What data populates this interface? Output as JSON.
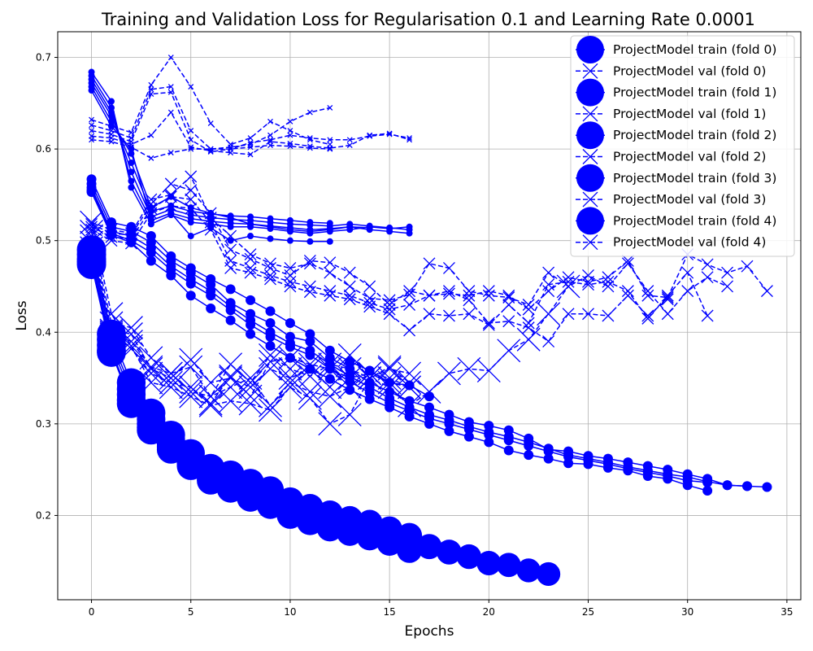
{
  "chart_data": {
    "type": "line",
    "title": "Training and Validation Loss for Regularisation 0.1 and Learning Rate 0.0001",
    "xlabel": "Epochs",
    "ylabel": "Loss",
    "xlim": [
      -1.7,
      35.7
    ],
    "ylim": [
      0.108,
      0.728
    ],
    "xticks": [
      0,
      5,
      10,
      15,
      20,
      25,
      30,
      35
    ],
    "yticks": [
      0.2,
      0.3,
      0.4,
      0.5,
      0.6,
      0.7
    ],
    "grid": true,
    "legend_position": "top-right",
    "line_color": "#0000ff",
    "legend": [
      "ProjectModel train (fold 0)",
      "ProjectModel val (fold 0)",
      "ProjectModel train (fold 1)",
      "ProjectModel val (fold 1)",
      "ProjectModel train (fold 2)",
      "ProjectModel val (fold 2)",
      "ProjectModel train (fold 3)",
      "ProjectModel val (fold 3)",
      "ProjectModel train (fold 4)",
      "ProjectModel val (fold 4)"
    ],
    "series": [
      {
        "kind": "train",
        "group": "a",
        "values": [
          0.684,
          0.652,
          0.558,
          0.518,
          0.528,
          0.52,
          0.518,
          0.515,
          0.515,
          0.513,
          0.51,
          0.508,
          0.51,
          0.512,
          0.515,
          0.513,
          0.515
        ]
      },
      {
        "kind": "train",
        "group": "a",
        "values": [
          0.68,
          0.645,
          0.565,
          0.522,
          0.53,
          0.524,
          0.521,
          0.519,
          0.518,
          0.516,
          0.514,
          0.512,
          0.513,
          0.515,
          0.512,
          0.51,
          0.508
        ]
      },
      {
        "kind": "train",
        "group": "a",
        "values": [
          0.676,
          0.64,
          0.575,
          0.526,
          0.534,
          0.528,
          0.525,
          0.523,
          0.522,
          0.52,
          0.518,
          0.517,
          0.516,
          0.518,
          0.516,
          0.514,
          0.512
        ]
      },
      {
        "kind": "train",
        "group": "a",
        "values": [
          0.672,
          0.636,
          0.585,
          0.532,
          0.538,
          0.532,
          0.529,
          0.527,
          0.526,
          0.524,
          0.522,
          0.52,
          0.519
        ]
      },
      {
        "kind": "train",
        "group": "a",
        "values": [
          0.668,
          0.63,
          0.595,
          0.536,
          0.548,
          0.536,
          0.53,
          0.525,
          0.518,
          0.515,
          0.512,
          0.51,
          0.512,
          0.515,
          0.514
        ]
      },
      {
        "kind": "train",
        "group": "a",
        "values": [
          0.664,
          0.625,
          0.6,
          0.522,
          0.53,
          0.505,
          0.514,
          0.5,
          0.505,
          0.502,
          0.5,
          0.499,
          0.499
        ]
      },
      {
        "kind": "val",
        "group": "a",
        "values": [
          0.632,
          0.625,
          0.618,
          0.67,
          0.7,
          0.668,
          0.628,
          0.605,
          0.612,
          0.63,
          0.62,
          0.61,
          0.605
        ]
      },
      {
        "kind": "val",
        "group": "a",
        "values": [
          0.626,
          0.62,
          0.612,
          0.665,
          0.668,
          0.62,
          0.6,
          0.602,
          0.605,
          0.615,
          0.63,
          0.64,
          0.645
        ]
      },
      {
        "kind": "val",
        "group": "a",
        "values": [
          0.62,
          0.616,
          0.608,
          0.66,
          0.662,
          0.61,
          0.597,
          0.6,
          0.607,
          0.61,
          0.615,
          0.612,
          0.61,
          0.61,
          0.614,
          0.616,
          0.612
        ]
      },
      {
        "kind": "val",
        "group": "a",
        "values": [
          0.614,
          0.612,
          0.605,
          0.615,
          0.64,
          0.602,
          0.598,
          0.596,
          0.594,
          0.608,
          0.606,
          0.603,
          0.601,
          0.604,
          0.615,
          0.617,
          0.61
        ]
      },
      {
        "kind": "val",
        "group": "a",
        "values": [
          0.61,
          0.608,
          0.602,
          0.59,
          0.596,
          0.6,
          0.6,
          0.6,
          0.602,
          0.604,
          0.603,
          0.601,
          0.6
        ]
      },
      {
        "kind": "train",
        "group": "b",
        "values": [
          0.567,
          0.52,
          0.515,
          0.505,
          0.483,
          0.47,
          0.458,
          0.447,
          0.435,
          0.423,
          0.41,
          0.398,
          0.38,
          0.368,
          0.358,
          0.345,
          0.342,
          0.33
        ]
      },
      {
        "kind": "train",
        "group": "b",
        "values": [
          0.562,
          0.515,
          0.51,
          0.498,
          0.478,
          0.465,
          0.452,
          0.432,
          0.42,
          0.41,
          0.395,
          0.39,
          0.372,
          0.36,
          0.345,
          0.335,
          0.325,
          0.318,
          0.31,
          0.302,
          0.298,
          0.293,
          0.284,
          0.272,
          0.27,
          0.265,
          0.262,
          0.258,
          0.254,
          0.25,
          0.245,
          0.24,
          0.233,
          0.232
        ]
      },
      {
        "kind": "train",
        "group": "b",
        "values": [
          0.558,
          0.51,
          0.505,
          0.492,
          0.472,
          0.458,
          0.445,
          0.428,
          0.413,
          0.4,
          0.388,
          0.38,
          0.365,
          0.352,
          0.34,
          0.328,
          0.318,
          0.31,
          0.304,
          0.297,
          0.291,
          0.286,
          0.28,
          0.273,
          0.266,
          0.262,
          0.258,
          0.253,
          0.249,
          0.245,
          0.242,
          0.237,
          0.233,
          0.232,
          0.231
        ]
      },
      {
        "kind": "train",
        "group": "b",
        "values": [
          0.555,
          0.508,
          0.5,
          0.487,
          0.468,
          0.453,
          0.44,
          0.424,
          0.408,
          0.395,
          0.384,
          0.375,
          0.36,
          0.346,
          0.334,
          0.323,
          0.314,
          0.306,
          0.3,
          0.294,
          0.288,
          0.282,
          0.276,
          0.27,
          0.264,
          0.26,
          0.256,
          0.251,
          0.247,
          0.243,
          0.238,
          0.236
        ]
      },
      {
        "kind": "train",
        "group": "b",
        "values": [
          0.553,
          0.506,
          0.498,
          0.478,
          0.462,
          0.44,
          0.426,
          0.413,
          0.398,
          0.385,
          0.372,
          0.36,
          0.349,
          0.337,
          0.327,
          0.318,
          0.308,
          0.3,
          0.292,
          0.286,
          0.28,
          0.271,
          0.266,
          0.262,
          0.257,
          0.256,
          0.252,
          0.249,
          0.243,
          0.24,
          0.233,
          0.227
        ]
      },
      {
        "kind": "val",
        "group": "b",
        "values": [
          0.52,
          0.512,
          0.508,
          0.545,
          0.55,
          0.57,
          0.525,
          0.505,
          0.485,
          0.475,
          0.47,
          0.475,
          0.465,
          0.45,
          0.437,
          0.435,
          0.441,
          0.475,
          0.47,
          0.445,
          0.44,
          0.438,
          0.43,
          0.465,
          0.45,
          0.462,
          0.45,
          0.475,
          0.445,
          0.42,
          0.445,
          0.46,
          0.45
        ]
      },
      {
        "kind": "val",
        "group": "b",
        "values": [
          0.518,
          0.508,
          0.506,
          0.54,
          0.562,
          0.555,
          0.53,
          0.49,
          0.48,
          0.47,
          0.462,
          0.478,
          0.476,
          0.465,
          0.45,
          0.43,
          0.445,
          0.44,
          0.442,
          0.44,
          0.445,
          0.44,
          0.425,
          0.445,
          0.46,
          0.455,
          0.46,
          0.478,
          0.44,
          0.438,
          0.485,
          0.474,
          0.465,
          0.472,
          0.445
        ]
      },
      {
        "kind": "val",
        "group": "b",
        "values": [
          0.515,
          0.504,
          0.502,
          0.535,
          0.548,
          0.545,
          0.52,
          0.478,
          0.47,
          0.462,
          0.455,
          0.45,
          0.445,
          0.44,
          0.432,
          0.425,
          0.43,
          0.44,
          0.445,
          0.435,
          0.41,
          0.412,
          0.405,
          0.39,
          0.42,
          0.42,
          0.418,
          0.44,
          0.418,
          0.436
        ]
      },
      {
        "kind": "val",
        "group": "b",
        "values": [
          0.512,
          0.5,
          0.497,
          0.53,
          0.538,
          0.535,
          0.512,
          0.47,
          0.465,
          0.458,
          0.45,
          0.444,
          0.44,
          0.436,
          0.428,
          0.42,
          0.402,
          0.42,
          0.418,
          0.42,
          0.408,
          0.43,
          0.41,
          0.452,
          0.455,
          0.452,
          0.455,
          0.445,
          0.415,
          0.44,
          0.465,
          0.418
        ]
      },
      {
        "kind": "train",
        "group": "c",
        "values": [
          0.49,
          0.398,
          0.345,
          0.312,
          0.288,
          0.268,
          0.252,
          0.245,
          0.236,
          0.228,
          0.216,
          0.209,
          0.202,
          0.196,
          0.192,
          0.185,
          0.178,
          0.166,
          0.16,
          0.155,
          0.148,
          0.146,
          0.14,
          0.136
        ]
      },
      {
        "kind": "train",
        "group": "c",
        "values": [
          0.485,
          0.392,
          0.338,
          0.305,
          0.282,
          0.262,
          0.248,
          0.24,
          0.23,
          0.222,
          0.212,
          0.204,
          0.198,
          0.192,
          0.188,
          0.18,
          0.172
        ]
      },
      {
        "kind": "train",
        "group": "c",
        "values": [
          0.48,
          0.386,
          0.332,
          0.3,
          0.278,
          0.258,
          0.244,
          0.236,
          0.226,
          0.218,
          0.208,
          0.2,
          0.194,
          0.188,
          0.184,
          0.176,
          0.167
        ]
      },
      {
        "kind": "train",
        "group": "c",
        "values": [
          0.477,
          0.38,
          0.326,
          0.296,
          0.275,
          0.256,
          0.241,
          0.232,
          0.222,
          0.214,
          0.204,
          0.196,
          0.19,
          0.184,
          0.18,
          0.172,
          0.164
        ]
      },
      {
        "kind": "train",
        "group": "c",
        "values": [
          0.474,
          0.378,
          0.322,
          0.293,
          0.272,
          0.254,
          0.238,
          0.229,
          0.219,
          0.211,
          0.2,
          0.193,
          0.186,
          0.181,
          0.176,
          0.17,
          0.162
        ]
      },
      {
        "kind": "val",
        "group": "c",
        "values": [
          0.52,
          0.42,
          0.385,
          0.345,
          0.34,
          0.33,
          0.32,
          0.325,
          0.322,
          0.315,
          0.34,
          0.328,
          0.3,
          0.31,
          0.35,
          0.34,
          0.32,
          0.335,
          0.355,
          0.36,
          0.358,
          0.38,
          0.392,
          0.42,
          0.45
        ]
      },
      {
        "kind": "val",
        "group": "c",
        "values": [
          0.51,
          0.41,
          0.405,
          0.372,
          0.355,
          0.335,
          0.33,
          0.34,
          0.35,
          0.32,
          0.345,
          0.335,
          0.33,
          0.34,
          0.355,
          0.35,
          0.34
        ]
      },
      {
        "kind": "val",
        "group": "c",
        "values": [
          0.505,
          0.402,
          0.398,
          0.36,
          0.35,
          0.37,
          0.345,
          0.35,
          0.34,
          0.36,
          0.35,
          0.36,
          0.34,
          0.375,
          0.35,
          0.36,
          0.355
        ]
      },
      {
        "kind": "val",
        "group": "c",
        "values": [
          0.498,
          0.398,
          0.39,
          0.362,
          0.355,
          0.362,
          0.33,
          0.365,
          0.345,
          0.375,
          0.36,
          0.352,
          0.365,
          0.36,
          0.35,
          0.362,
          0.345
        ]
      },
      {
        "kind": "val",
        "group": "c",
        "values": [
          0.492,
          0.4,
          0.382,
          0.355,
          0.345,
          0.34,
          0.322,
          0.352,
          0.33,
          0.368,
          0.372,
          0.365,
          0.36,
          0.35,
          0.355,
          0.345,
          0.34
        ]
      }
    ]
  }
}
